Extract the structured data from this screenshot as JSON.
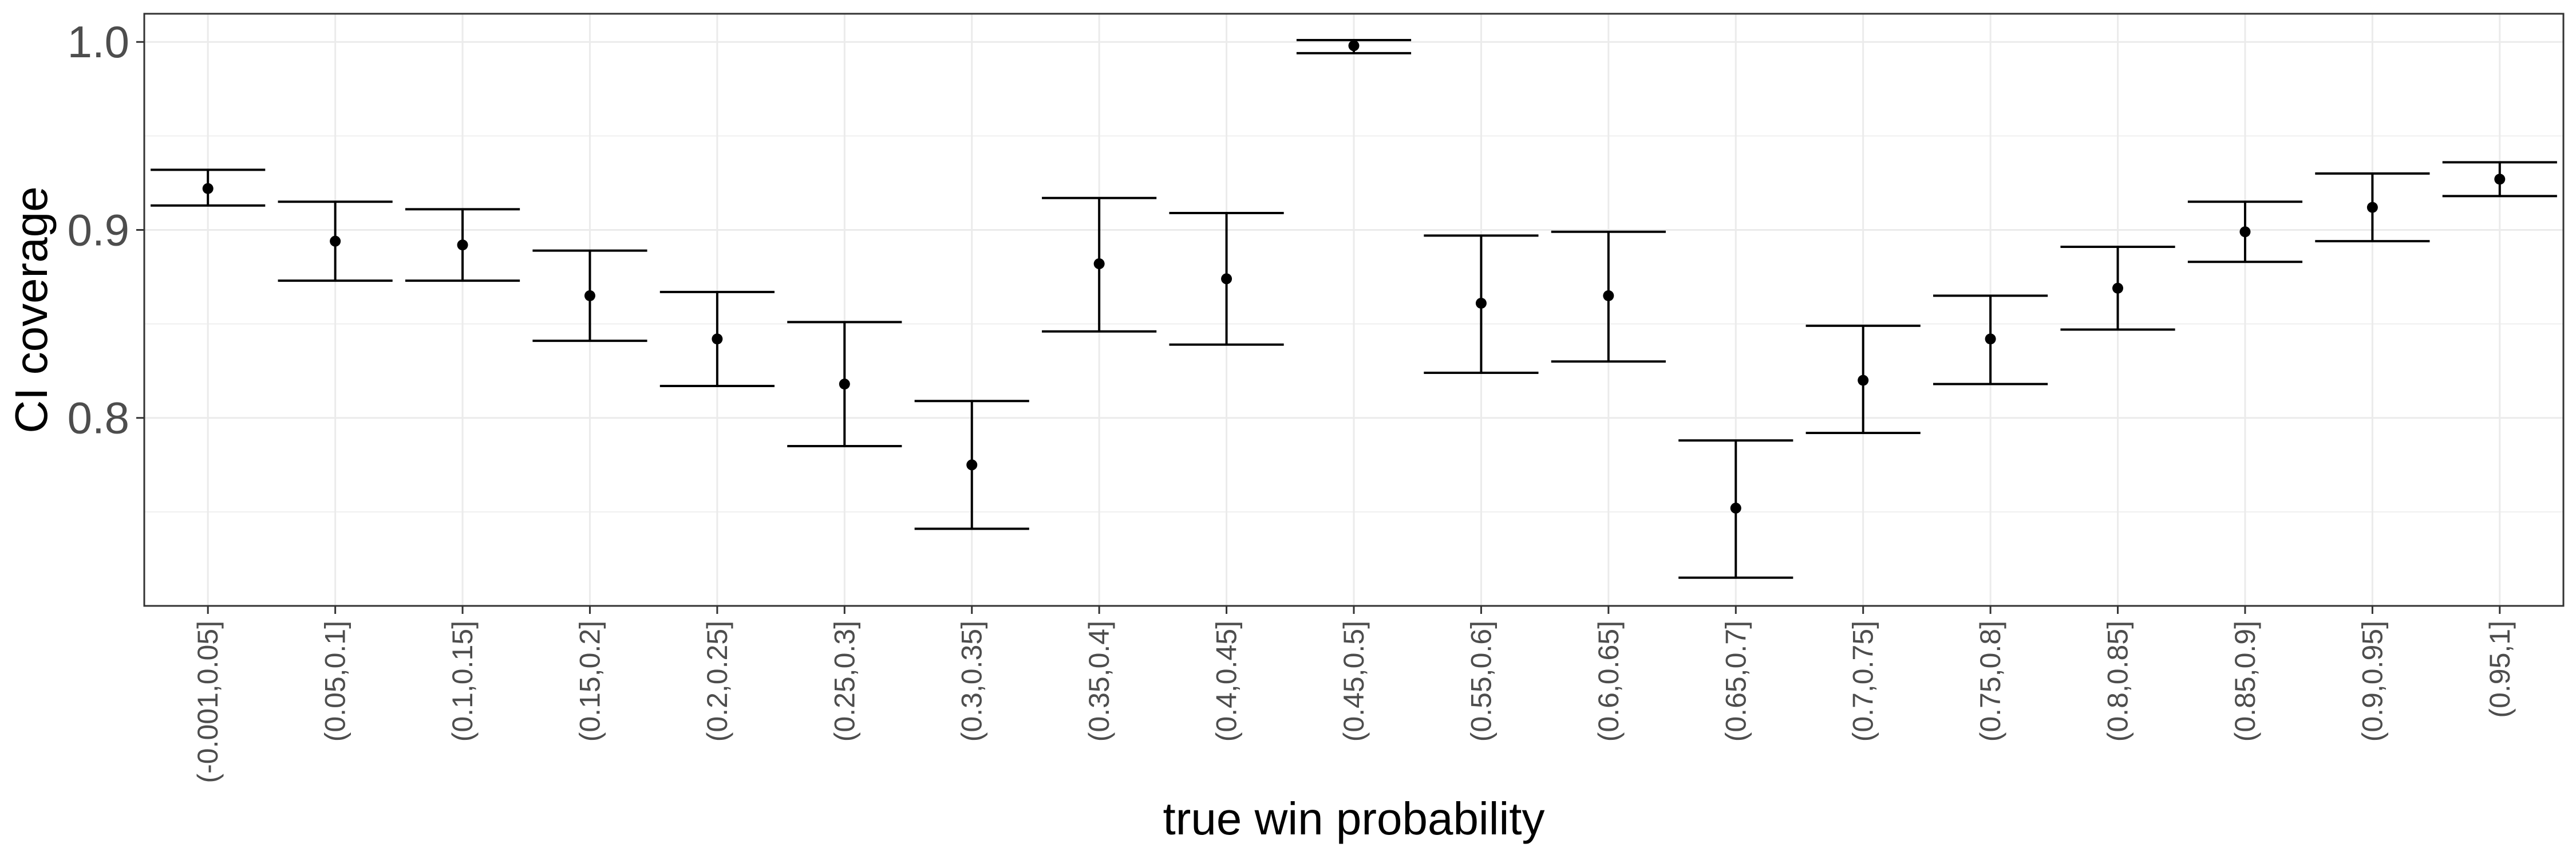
{
  "chart_data": {
    "type": "errorbar",
    "title": "",
    "xlabel": "true win probability",
    "ylabel": "CI coverage",
    "ylim": [
      0.7,
      1.015
    ],
    "yticks": [
      0.8,
      0.9,
      1.0
    ],
    "ytick_labels": [
      "0.8",
      "0.9",
      "1.0"
    ],
    "grid": true,
    "legend": "none",
    "categories": [
      "(-0.001,0.05]",
      "(0.05,0.1]",
      "(0.1,0.15]",
      "(0.15,0.2]",
      "(0.2,0.25]",
      "(0.25,0.3]",
      "(0.3,0.35]",
      "(0.35,0.4]",
      "(0.4,0.45]",
      "(0.45,0.5]",
      "(0.55,0.6]",
      "(0.6,0.65]",
      "(0.65,0.7]",
      "(0.7,0.75]",
      "(0.75,0.8]",
      "(0.8,0.85]",
      "(0.85,0.9]",
      "(0.9,0.95]",
      "(0.95,1]"
    ],
    "values": [
      0.922,
      0.894,
      0.892,
      0.865,
      0.842,
      0.818,
      0.775,
      0.882,
      0.874,
      0.998,
      0.861,
      0.865,
      0.752,
      0.82,
      0.842,
      0.869,
      0.899,
      0.912,
      0.927
    ],
    "lower": [
      0.913,
      0.873,
      0.873,
      0.841,
      0.817,
      0.785,
      0.741,
      0.846,
      0.839,
      0.994,
      0.824,
      0.83,
      0.715,
      0.792,
      0.818,
      0.847,
      0.883,
      0.894,
      0.918
    ],
    "upper": [
      0.932,
      0.915,
      0.911,
      0.889,
      0.867,
      0.851,
      0.809,
      0.917,
      0.909,
      1.001,
      0.897,
      0.899,
      0.788,
      0.849,
      0.865,
      0.891,
      0.915,
      0.93,
      0.936
    ],
    "colors": {
      "marks": "#000000",
      "grid": "#ebebeb",
      "panel_border": "#333333",
      "tick_text": "#4d4d4d"
    }
  }
}
